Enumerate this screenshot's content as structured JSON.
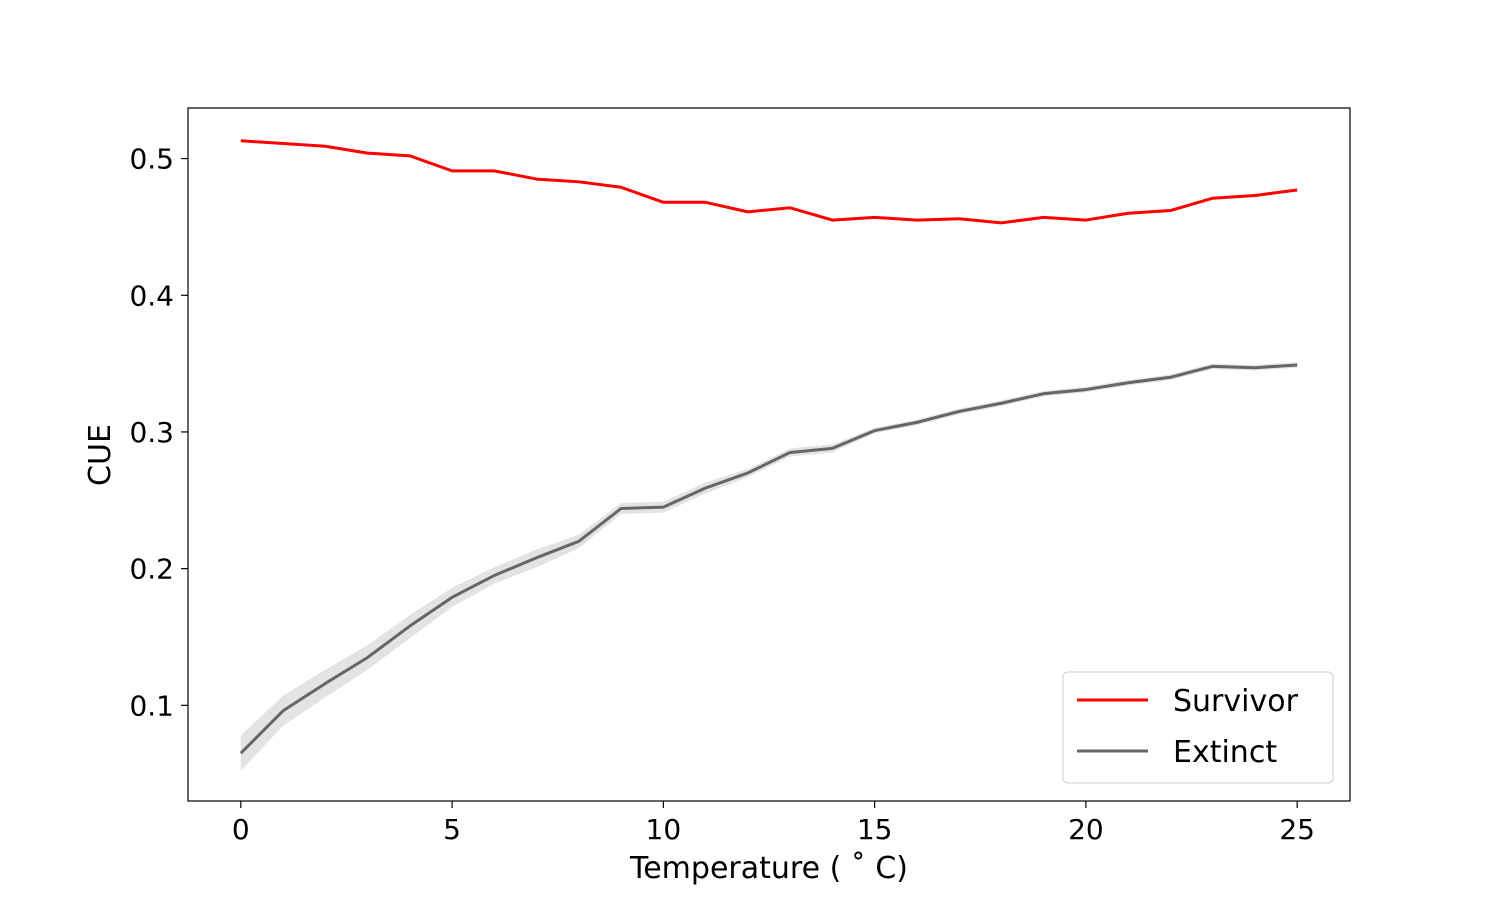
{
  "chart_data": {
    "type": "line",
    "title": "",
    "xlabel": "Temperature ($^\\circ$C)",
    "xlabel_display": "Temperature ( ˚ C)",
    "ylabel": "CUE",
    "xlim": [
      -1.25,
      26.25
    ],
    "ylim": [
      0.03,
      0.537
    ],
    "xticks": [
      0,
      5,
      10,
      15,
      20,
      25
    ],
    "yticks": [
      0.1,
      0.2,
      0.3,
      0.4,
      0.5
    ],
    "grid": false,
    "legend_position": "bottom-right",
    "x": [
      0,
      1,
      2,
      3,
      4,
      5,
      6,
      7,
      8,
      9,
      10,
      11,
      12,
      13,
      14,
      15,
      16,
      17,
      18,
      19,
      20,
      21,
      22,
      23,
      24,
      25
    ],
    "series": [
      {
        "name": "Survivor",
        "color": "#ff0000",
        "values": [
          0.513,
          0.511,
          0.509,
          0.504,
          0.502,
          0.491,
          0.491,
          0.485,
          0.483,
          0.479,
          0.468,
          0.468,
          0.461,
          0.464,
          0.455,
          0.457,
          0.455,
          0.456,
          0.453,
          0.457,
          0.455,
          0.46,
          0.462,
          0.471,
          0.473,
          0.477
        ]
      },
      {
        "name": "Extinct",
        "color": "#666666",
        "band_color": "#cccccc",
        "values": [
          0.065,
          0.096,
          0.116,
          0.135,
          0.158,
          0.179,
          0.195,
          0.208,
          0.22,
          0.244,
          0.245,
          0.259,
          0.27,
          0.285,
          0.288,
          0.301,
          0.307,
          0.315,
          0.321,
          0.328,
          0.331,
          0.336,
          0.34,
          0.348,
          0.347,
          0.349
        ],
        "lower": [
          0.052,
          0.085,
          0.106,
          0.126,
          0.149,
          0.172,
          0.189,
          0.201,
          0.215,
          0.24,
          0.241,
          0.255,
          0.267,
          0.282,
          0.285,
          0.299,
          0.305,
          0.313,
          0.319,
          0.326,
          0.329,
          0.334,
          0.338,
          0.346,
          0.345,
          0.347
        ],
        "upper": [
          0.078,
          0.107,
          0.126,
          0.144,
          0.166,
          0.186,
          0.201,
          0.214,
          0.225,
          0.248,
          0.249,
          0.263,
          0.273,
          0.288,
          0.291,
          0.303,
          0.309,
          0.317,
          0.323,
          0.33,
          0.333,
          0.338,
          0.342,
          0.35,
          0.349,
          0.351
        ]
      }
    ]
  }
}
